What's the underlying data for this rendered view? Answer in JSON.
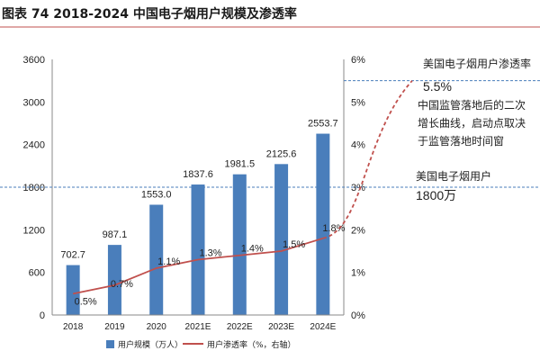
{
  "title": "图表 74 2018-2024 中国电子烟用户规模及渗透率",
  "chart_data": {
    "type": "bar",
    "categories": [
      "2018",
      "2019",
      "2020",
      "2021E",
      "2022E",
      "2023E",
      "2024E"
    ],
    "series": [
      {
        "name": "用户规模（万人）",
        "type": "bar",
        "axis": "left",
        "values": [
          702.7,
          987.1,
          1553.0,
          1837.6,
          1981.5,
          2125.6,
          2553.7
        ],
        "labels": [
          "702.7",
          "987.1",
          "1553.0",
          "1837.6",
          "1981.5",
          "2125.6",
          "2553.7"
        ],
        "color": "#4a7ebb"
      },
      {
        "name": "用户渗透率（%，右轴）",
        "type": "line",
        "axis": "right",
        "values": [
          0.5,
          0.7,
          1.1,
          1.3,
          1.4,
          1.5,
          1.8
        ],
        "labels": [
          "0.5%",
          "0.7%",
          "1.1%",
          "1.3%",
          "1.4%",
          "1.5%",
          "1.8%"
        ],
        "color": "#c0504d"
      }
    ],
    "projection": {
      "from": 1.8,
      "to": 5.5,
      "style": "dashed",
      "color": "#c0504d"
    },
    "ylim": [
      0,
      3600
    ],
    "y_ticks": [
      "0",
      "600",
      "1200",
      "1800",
      "2400",
      "3000",
      "3600"
    ],
    "y2lim": [
      0,
      6
    ],
    "y2_ticks": [
      "0%",
      "1%",
      "2%",
      "3%",
      "4%",
      "5%",
      "6%"
    ],
    "ref_lines": [
      {
        "axis": "left",
        "value": 1800,
        "style": "dashed",
        "color": "#4a7ebb"
      },
      {
        "axis": "right",
        "value": 5.5,
        "style": "dashed",
        "color": "#4a7ebb"
      }
    ],
    "annotations": [
      {
        "key": "a1",
        "text": "美国电子烟用户渗透率"
      },
      {
        "key": "a2",
        "text": "5.5%"
      },
      {
        "key": "a3",
        "text": "中国监管落地后的二次"
      },
      {
        "key": "a4",
        "text": "增长曲线，启动点取决"
      },
      {
        "key": "a5",
        "text": "于监管落地时间窗"
      },
      {
        "key": "a6",
        "text": "美国电子烟用户"
      },
      {
        "key": "a7",
        "text": "1800万"
      }
    ],
    "legend_position": "bottom",
    "grid": false
  }
}
